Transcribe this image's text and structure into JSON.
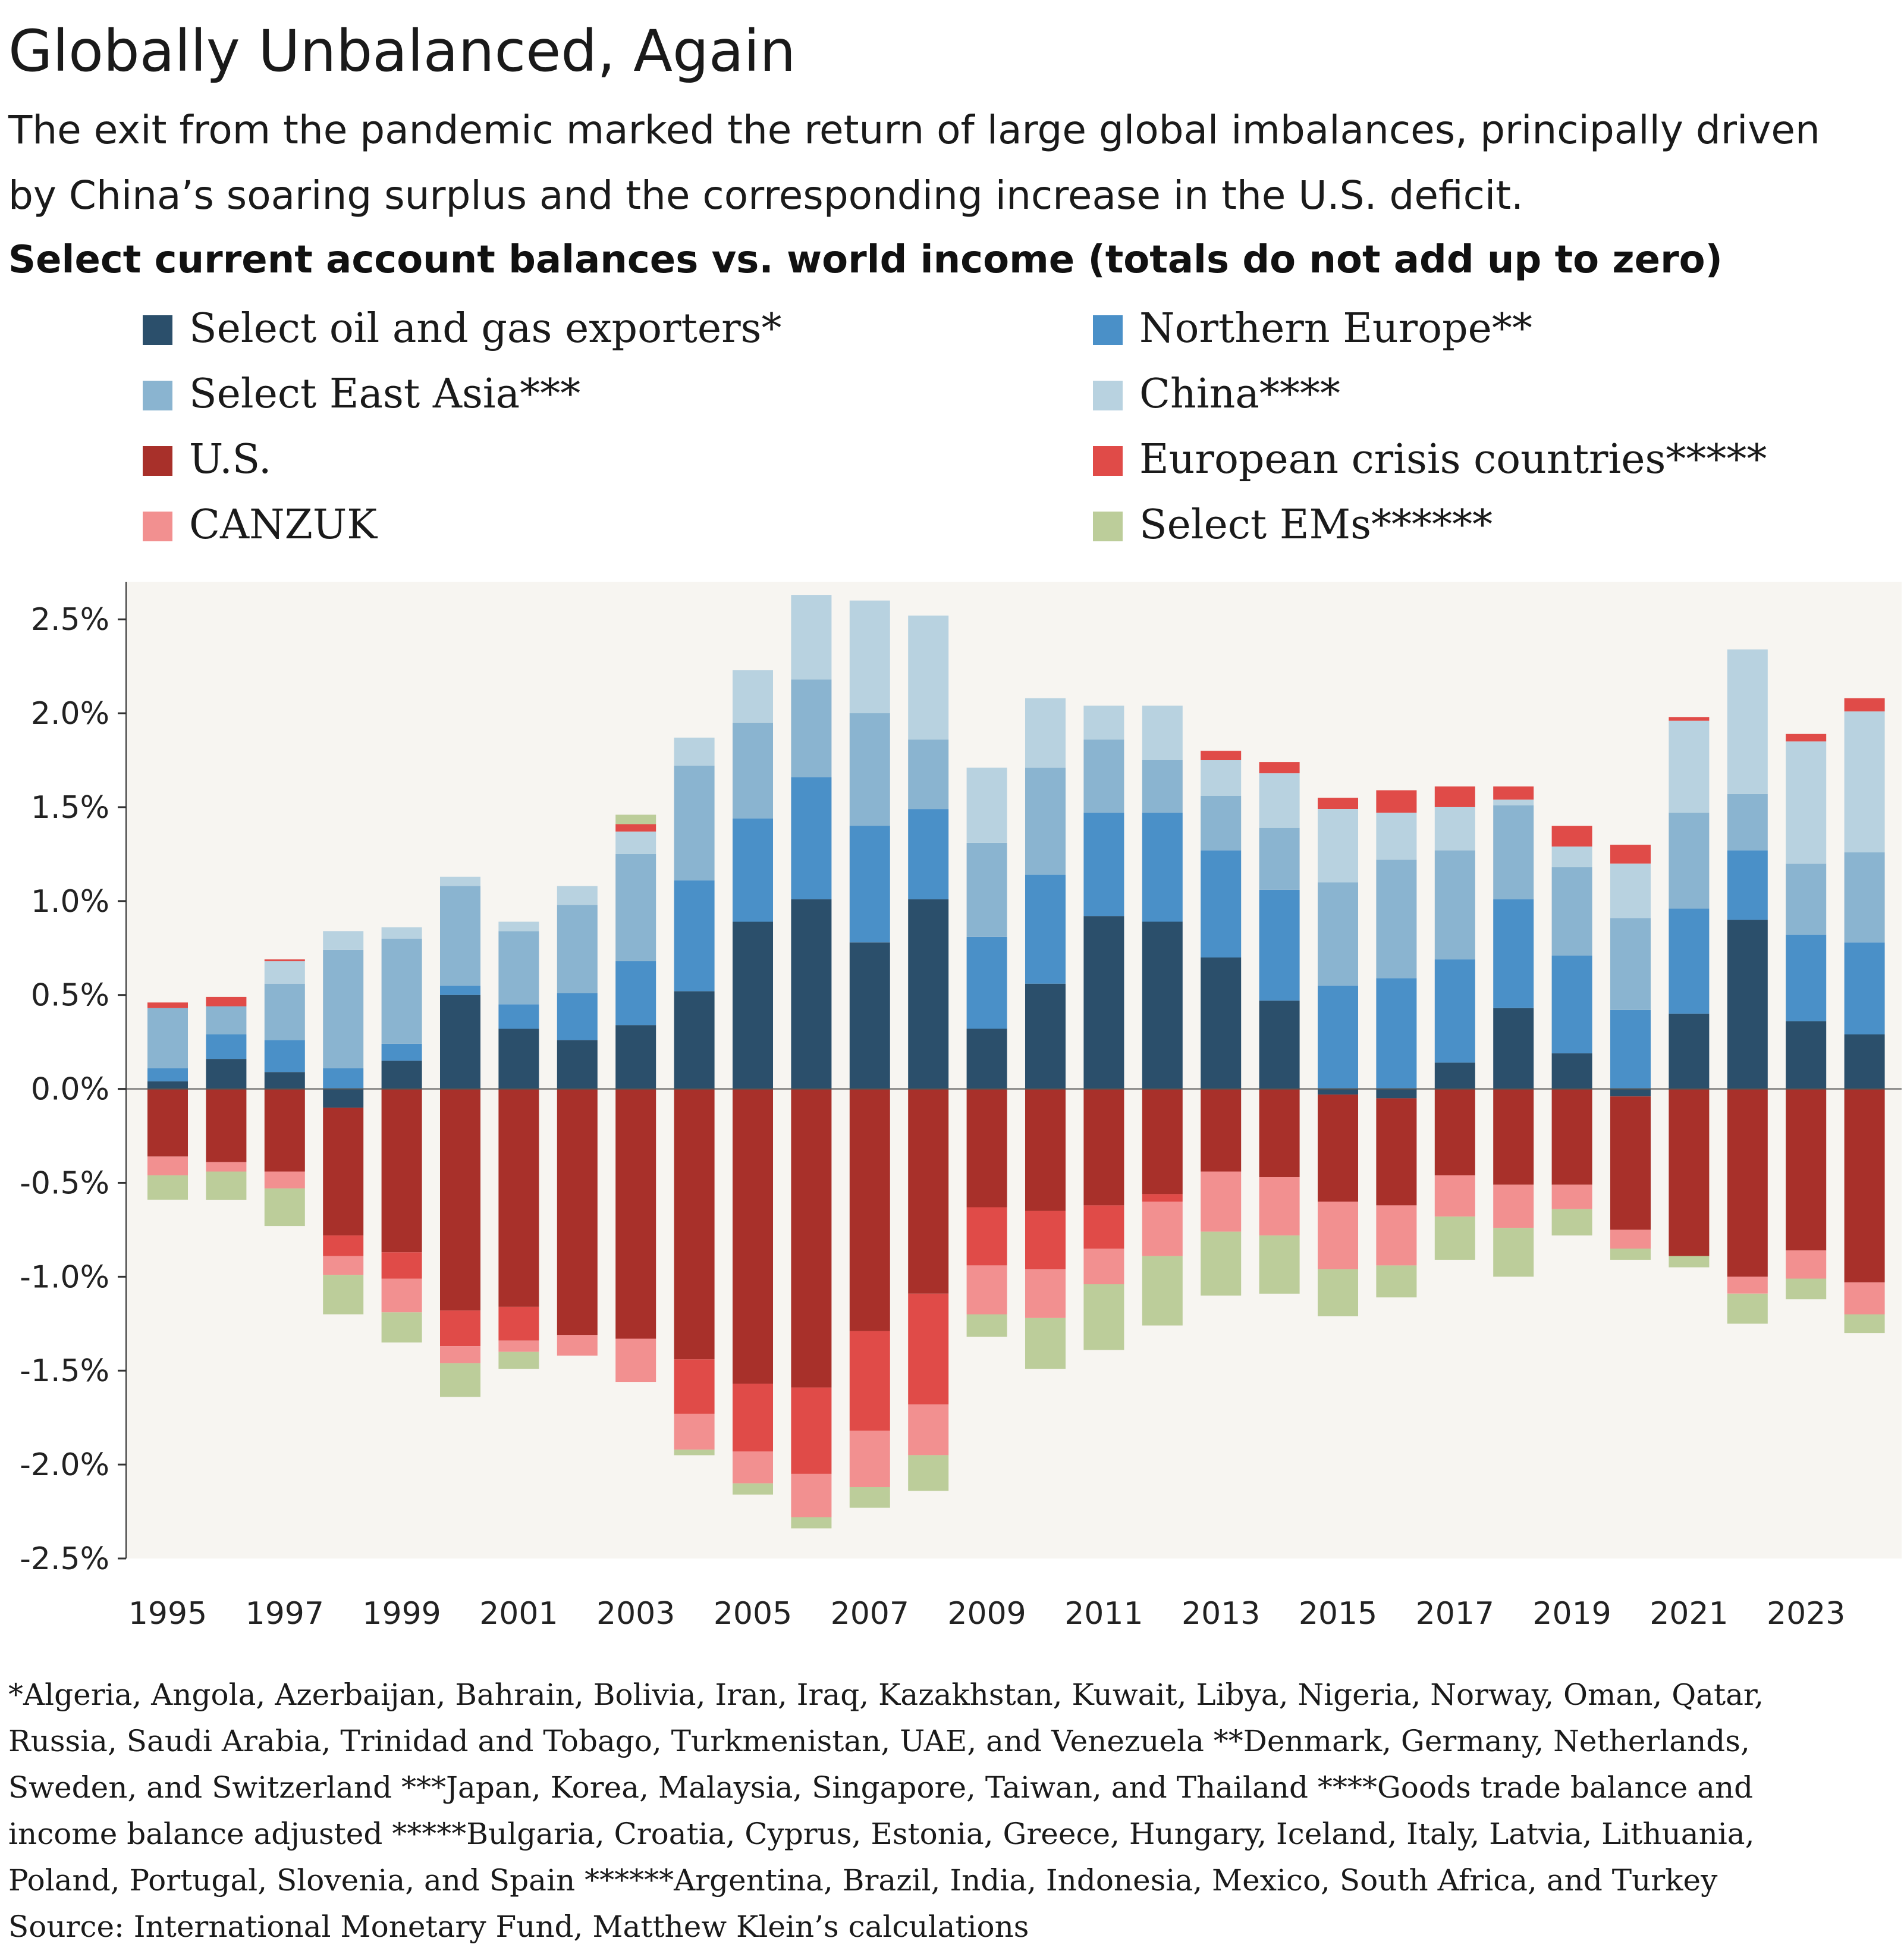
{
  "title": "Globally Unbalanced, Again",
  "subtitle_lines": [
    "The exit from the pandemic marked the return of large global imbalances, principally driven",
    "by China’s soaring surplus and the corresponding increase in the U.S. deficit."
  ],
  "colors": {
    "plot_background": "#f7f5f1",
    "oil": "#2b4f6b",
    "northern_europe": "#4a90c8",
    "east_asia": "#8ab4d0",
    "china": "#b8d2e0",
    "us": "#a8302a",
    "euro_crisis": "#e04b48",
    "canzuk": "#f29090",
    "ems": "#bccd9a"
  },
  "chart_data": {
    "type": "bar",
    "stacked": true,
    "title": "Select current account balances vs. world income (totals do not add up to zero)",
    "xlabel": "",
    "ylabel": "",
    "ylim": [
      -2.5,
      2.7
    ],
    "y_ticks": [
      2.5,
      2.0,
      1.5,
      1.0,
      0.5,
      0.0,
      -0.5,
      -1.0,
      -1.5,
      -2.0,
      -2.5
    ],
    "y_tick_labels": [
      "2.5%",
      "2.0%",
      "1.5%",
      "1.0%",
      "0.5%",
      "0.0%",
      "-0.5%",
      "-1.0%",
      "-1.5%",
      "-2.0%",
      "-2.5%"
    ],
    "x_tick_labels": [
      "1995",
      "1997",
      "1999",
      "2001",
      "2003",
      "2005",
      "2007",
      "2009",
      "2011",
      "2013",
      "2015",
      "2017",
      "2019",
      "2021",
      "2023"
    ],
    "grid": false,
    "legend_position": "top",
    "categories": [
      1995,
      1996,
      1997,
      1998,
      1999,
      2000,
      2001,
      2002,
      2003,
      2004,
      2005,
      2006,
      2007,
      2008,
      2009,
      2010,
      2011,
      2012,
      2013,
      2014,
      2015,
      2016,
      2017,
      2018,
      2019,
      2020,
      2021,
      2022,
      2023,
      2024
    ],
    "series": [
      {
        "name": "Select oil and gas exporters*",
        "color_key": "oil",
        "values": [
          0.04,
          0.16,
          0.09,
          -0.1,
          0.15,
          0.5,
          0.32,
          0.26,
          0.34,
          0.52,
          0.89,
          1.01,
          0.78,
          1.01,
          0.32,
          0.56,
          0.92,
          0.89,
          0.7,
          0.47,
          -0.03,
          -0.05,
          0.14,
          0.43,
          0.19,
          -0.04,
          0.4,
          0.9,
          0.36,
          0.29
        ]
      },
      {
        "name": "Northern Europe**",
        "color_key": "northern_europe",
        "values": [
          0.07,
          0.13,
          0.17,
          0.11,
          0.09,
          0.05,
          0.13,
          0.25,
          0.34,
          0.59,
          0.55,
          0.65,
          0.62,
          0.48,
          0.49,
          0.58,
          0.55,
          0.58,
          0.57,
          0.59,
          0.55,
          0.59,
          0.55,
          0.58,
          0.52,
          0.42,
          0.56,
          0.37,
          0.46,
          0.49
        ]
      },
      {
        "name": "Select East Asia***",
        "color_key": "east_asia",
        "values": [
          0.32,
          0.15,
          0.3,
          0.63,
          0.56,
          0.53,
          0.39,
          0.47,
          0.57,
          0.61,
          0.51,
          0.52,
          0.6,
          0.37,
          0.5,
          0.57,
          0.39,
          0.28,
          0.29,
          0.33,
          0.55,
          0.63,
          0.58,
          0.5,
          0.47,
          0.49,
          0.51,
          0.3,
          0.38,
          0.48
        ]
      },
      {
        "name": "China****",
        "color_key": "china",
        "values": [
          0.0,
          0.0,
          0.12,
          0.1,
          0.06,
          0.05,
          0.05,
          0.1,
          0.12,
          0.15,
          0.28,
          0.45,
          0.6,
          0.66,
          0.4,
          0.37,
          0.18,
          0.29,
          0.19,
          0.29,
          0.39,
          0.25,
          0.23,
          0.03,
          0.11,
          0.29,
          0.49,
          0.77,
          0.65,
          0.75
        ]
      },
      {
        "name": "European crisis countries*****",
        "color_key": "euro_crisis",
        "values": [
          0.03,
          0.05,
          0.01,
          0.0,
          0.0,
          0.0,
          0.0,
          0.0,
          0.04,
          0.0,
          0.0,
          0.0,
          0.0,
          0.0,
          0.0,
          0.0,
          0.0,
          0.0,
          0.05,
          0.06,
          0.06,
          0.12,
          0.11,
          0.07,
          0.11,
          0.1,
          0.02,
          0.0,
          0.04,
          0.07
        ]
      },
      {
        "name": "Select EMs******",
        "color_key": "ems",
        "values": [
          0.0,
          0.0,
          0.0,
          0.0,
          0.0,
          0.0,
          0.0,
          0.0,
          0.05,
          0.0,
          0.0,
          0.0,
          0.0,
          0.0,
          0.0,
          0.0,
          0.0,
          0.0,
          0.0,
          0.0,
          0.0,
          0.0,
          0.0,
          0.0,
          0.0,
          0.0,
          0.0,
          0.0,
          0.0,
          0.0
        ]
      },
      {
        "name": "U.S.",
        "color_key": "us",
        "values": [
          -0.36,
          -0.39,
          -0.44,
          -0.68,
          -0.87,
          -1.18,
          -1.16,
          -1.31,
          -1.33,
          -1.44,
          -1.57,
          -1.59,
          -1.29,
          -1.09,
          -0.63,
          -0.65,
          -0.62,
          -0.56,
          -0.44,
          -0.47,
          -0.57,
          -0.57,
          -0.46,
          -0.51,
          -0.51,
          -0.71,
          -0.89,
          -1.0,
          -0.86,
          -1.03
        ]
      },
      {
        "name": "European crisis countries*****",
        "color_key": "euro_crisis",
        "values": [
          0.0,
          0.0,
          0.0,
          -0.11,
          -0.14,
          -0.19,
          -0.18,
          -0.0,
          -0.0,
          -0.29,
          -0.36,
          -0.46,
          -0.53,
          -0.59,
          -0.31,
          -0.31,
          -0.23,
          -0.04,
          0.0,
          0.0,
          0.0,
          0.0,
          0.0,
          0.0,
          0.0,
          0.0,
          0.0,
          0.0,
          0.0,
          0.0
        ]
      },
      {
        "name": "CANZUK",
        "color_key": "canzuk",
        "values": [
          -0.1,
          -0.05,
          -0.09,
          -0.1,
          -0.18,
          -0.09,
          -0.06,
          -0.11,
          -0.23,
          -0.19,
          -0.17,
          -0.23,
          -0.3,
          -0.27,
          -0.26,
          -0.26,
          -0.19,
          -0.29,
          -0.32,
          -0.31,
          -0.36,
          -0.32,
          -0.22,
          -0.23,
          -0.13,
          -0.1,
          0.0,
          -0.09,
          -0.15,
          -0.17
        ]
      },
      {
        "name": "Select EMs******",
        "color_key": "ems",
        "values": [
          -0.13,
          -0.15,
          -0.2,
          -0.21,
          -0.16,
          -0.18,
          -0.09,
          0.0,
          0.0,
          -0.03,
          -0.06,
          -0.06,
          -0.11,
          -0.19,
          -0.12,
          -0.27,
          -0.35,
          -0.37,
          -0.34,
          -0.31,
          -0.25,
          -0.17,
          -0.23,
          -0.26,
          -0.14,
          -0.06,
          -0.06,
          -0.16,
          -0.11,
          -0.1
        ]
      }
    ]
  },
  "legend": [
    {
      "label": "Select oil and gas exporters*",
      "color_key": "oil"
    },
    {
      "label": "Northern Europe**",
      "color_key": "northern_europe"
    },
    {
      "label": "Select East Asia***",
      "color_key": "east_asia"
    },
    {
      "label": "China****",
      "color_key": "china"
    },
    {
      "label": "U.S.",
      "color_key": "us"
    },
    {
      "label": "European crisis countries*****",
      "color_key": "euro_crisis"
    },
    {
      "label": "CANZUK",
      "color_key": "canzuk"
    },
    {
      "label": "Select EMs******",
      "color_key": "ems"
    }
  ],
  "footnote_lines": [
    "*Algeria, Angola, Azerbaijan, Bahrain, Bolivia, Iran, Iraq, Kazakhstan, Kuwait, Libya, Nigeria, Norway, Oman, Qatar,",
    "Russia, Saudi Arabia, Trinidad and Tobago, Turkmenistan, UAE, and Venezuela    **Denmark, Germany, Netherlands,",
    "Sweden, and Switzerland    ***Japan, Korea, Malaysia, Singapore, Taiwan, and Thailand    ****Goods trade balance and",
    "income balance adjusted    *****Bulgaria, Croatia, Cyprus, Estonia, Greece, Hungary, Iceland, Italy, Latvia, Lithuania,",
    "Poland, Portugal, Slovenia, and Spain    ******Argentina, Brazil, India, Indonesia, Mexico, South Africa, and Turkey"
  ],
  "source": "Source: International Monetary Fund, Matthew Klein’s calculations"
}
